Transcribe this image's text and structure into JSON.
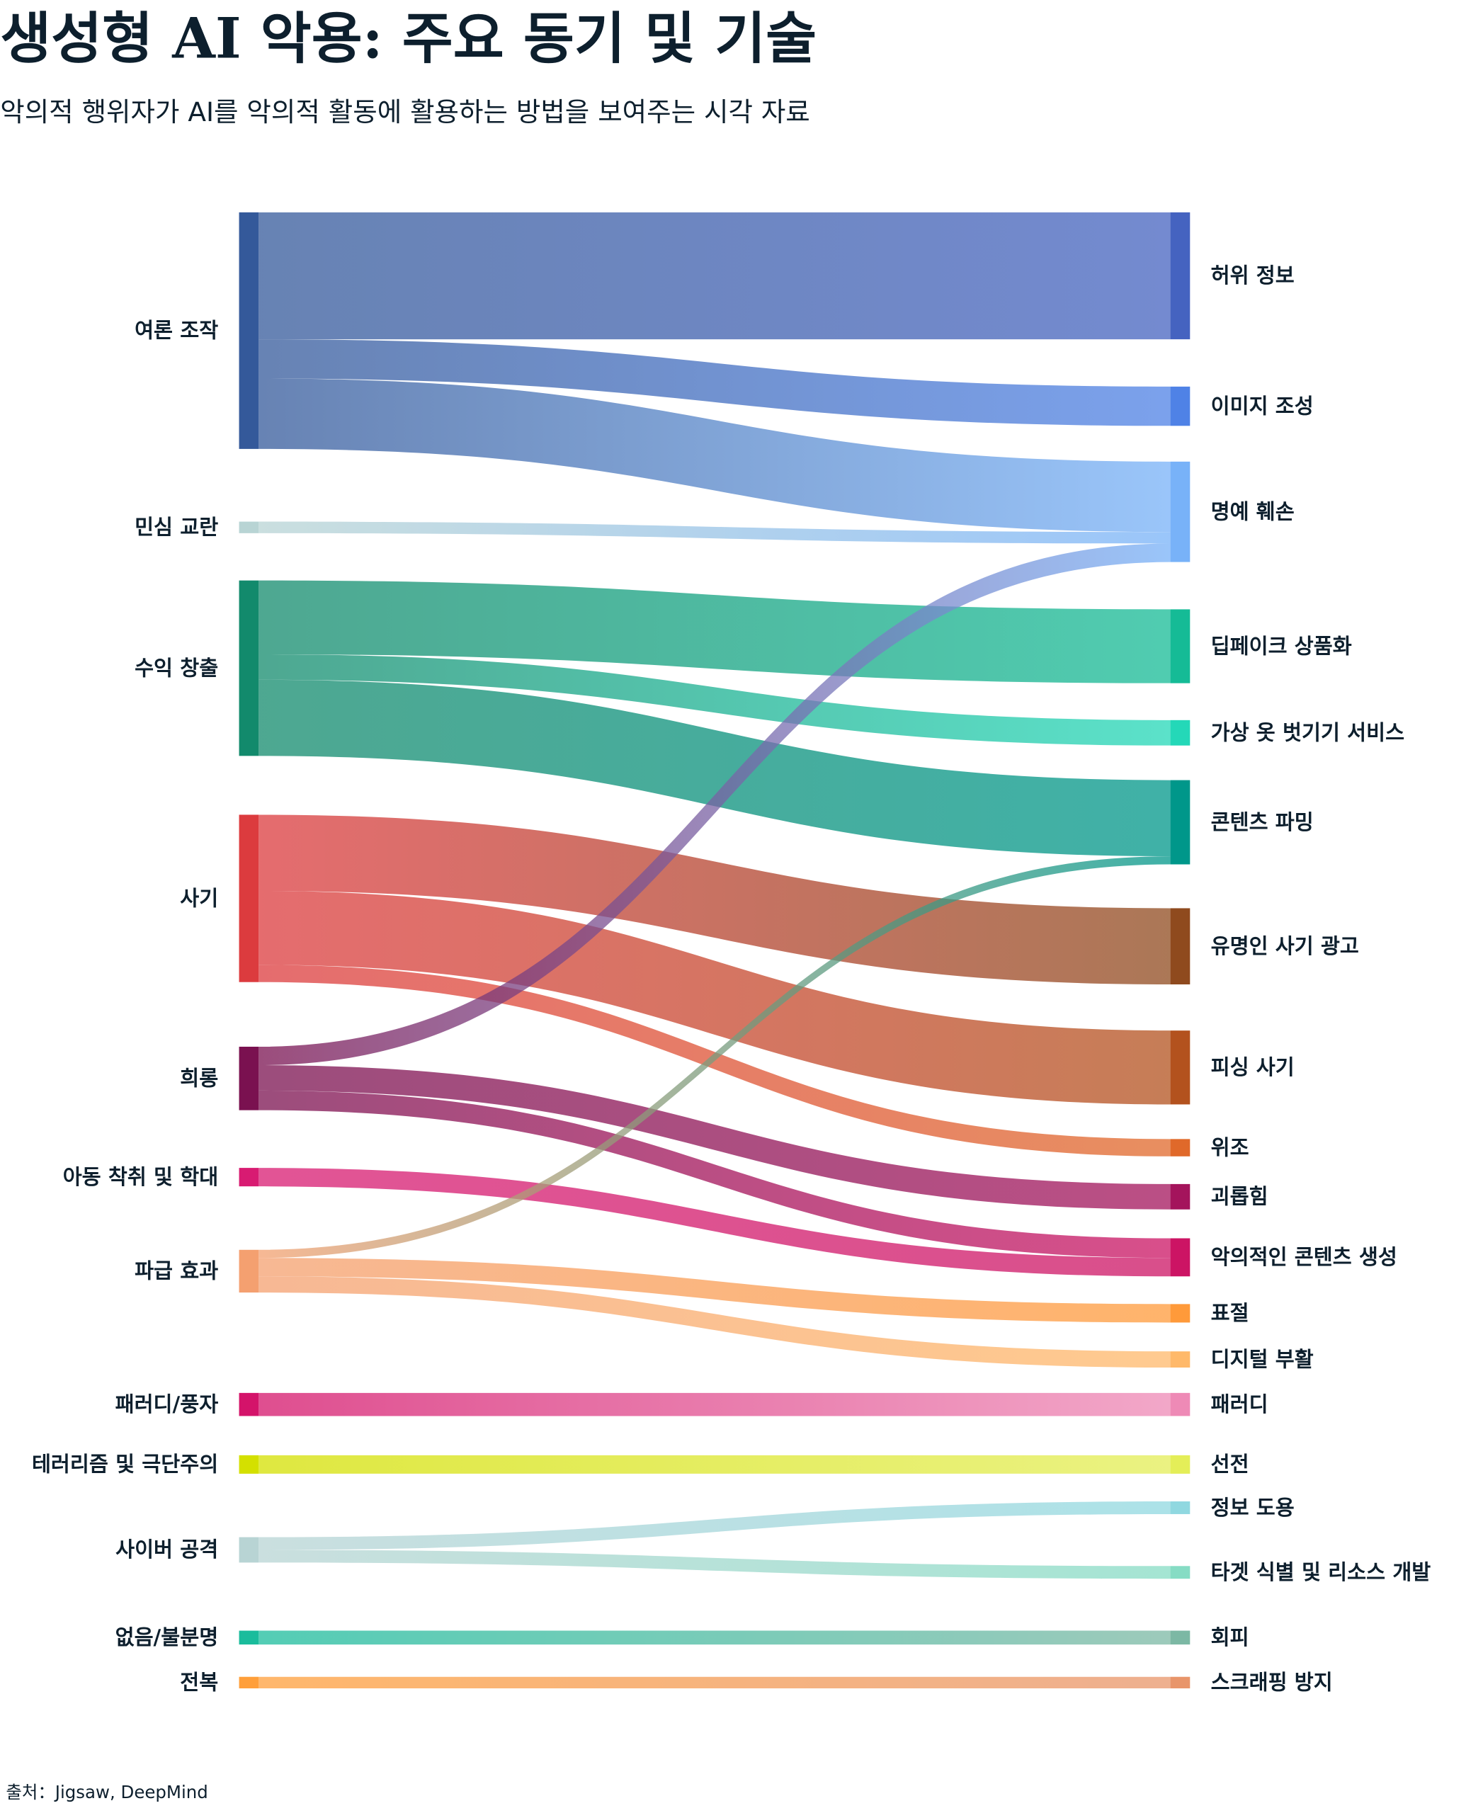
{
  "header": {
    "title": "생성형 AI 악용: 주요 동기 및 기술",
    "subtitle": "악의적 행위자가 AI를 악의적 활동에 활용하는 방법을 보여주는 시각 자료"
  },
  "footer": {
    "source": "출처：Jigsaw, DeepMind"
  },
  "chart_data": {
    "type": "sankey",
    "sources": [
      {
        "name": "여론 조작",
        "color": "#34599a"
      },
      {
        "name": "민심 교란",
        "color": "#b8d4d4"
      },
      {
        "name": "수익 창출",
        "color": "#128a6c"
      },
      {
        "name": "사기",
        "color": "#dc3b3e"
      },
      {
        "name": "희롱",
        "color": "#7a1150"
      },
      {
        "name": "아동 착취 및 학대",
        "color": "#d81b72"
      },
      {
        "name": "파급 효과",
        "color": "#f4a070"
      },
      {
        "name": "패러디/풍자",
        "color": "#d4136a"
      },
      {
        "name": "테러리즘 및 극단주의",
        "color": "#d4e000"
      },
      {
        "name": "사이버 공격",
        "color": "#b8d4d4"
      },
      {
        "name": "없음/불분명",
        "color": "#1abc9c"
      },
      {
        "name": "전복",
        "color": "#ff9f3a"
      }
    ],
    "targets": [
      {
        "name": "허위 정보",
        "color": "#4563c0"
      },
      {
        "name": "이미지 조성",
        "color": "#4f82e6"
      },
      {
        "name": "명예 훼손",
        "color": "#78b2f8"
      },
      {
        "name": "딥페이크 상품화",
        "color": "#15bb96"
      },
      {
        "name": "가상 옷 벗기기 서비스",
        "color": "#24d8b8"
      },
      {
        "name": "콘텐츠 파밍",
        "color": "#00978a"
      },
      {
        "name": "유명인 사기 광고",
        "color": "#8f4a1e"
      },
      {
        "name": "피싱 사기",
        "color": "#b3521e"
      },
      {
        "name": "위조",
        "color": "#e0692a"
      },
      {
        "name": "괴롭힘",
        "color": "#a4145c"
      },
      {
        "name": "악의적인 콘텐츠 생성",
        "color": "#cc1464"
      },
      {
        "name": "표절",
        "color": "#ff9a3a"
      },
      {
        "name": "디지털 부활",
        "color": "#ffb96a"
      },
      {
        "name": "패러디",
        "color": "#ee8ab6"
      },
      {
        "name": "선전",
        "color": "#e4ee58"
      },
      {
        "name": "정보 도용",
        "color": "#90d8e0"
      },
      {
        "name": "타겟 식별 및 리소스 개발",
        "color": "#86dcc4"
      },
      {
        "name": "회피",
        "color": "#7cb8a4"
      },
      {
        "name": "스크래핑 방지",
        "color": "#e8956a"
      }
    ],
    "links": [
      {
        "source": 0,
        "target": 0,
        "value": 110
      },
      {
        "source": 0,
        "target": 1,
        "value": 34
      },
      {
        "source": 0,
        "target": 2,
        "value": 61
      },
      {
        "source": 1,
        "target": 2,
        "value": 10
      },
      {
        "source": 2,
        "target": 3,
        "value": 64
      },
      {
        "source": 2,
        "target": 4,
        "value": 22
      },
      {
        "source": 2,
        "target": 5,
        "value": 66
      },
      {
        "source": 3,
        "target": 6,
        "value": 66
      },
      {
        "source": 3,
        "target": 7,
        "value": 64
      },
      {
        "source": 3,
        "target": 8,
        "value": 15
      },
      {
        "source": 4,
        "target": 2,
        "value": 16
      },
      {
        "source": 4,
        "target": 9,
        "value": 22
      },
      {
        "source": 4,
        "target": 10,
        "value": 17
      },
      {
        "source": 5,
        "target": 10,
        "value": 16
      },
      {
        "source": 6,
        "target": 5,
        "value": 7
      },
      {
        "source": 6,
        "target": 11,
        "value": 16
      },
      {
        "source": 6,
        "target": 12,
        "value": 14
      },
      {
        "source": 7,
        "target": 13,
        "value": 20
      },
      {
        "source": 8,
        "target": 14,
        "value": 16
      },
      {
        "source": 9,
        "target": 15,
        "value": 11
      },
      {
        "source": 9,
        "target": 16,
        "value": 11
      },
      {
        "source": 10,
        "target": 17,
        "value": 12
      },
      {
        "source": 11,
        "target": 18,
        "value": 10
      }
    ]
  }
}
